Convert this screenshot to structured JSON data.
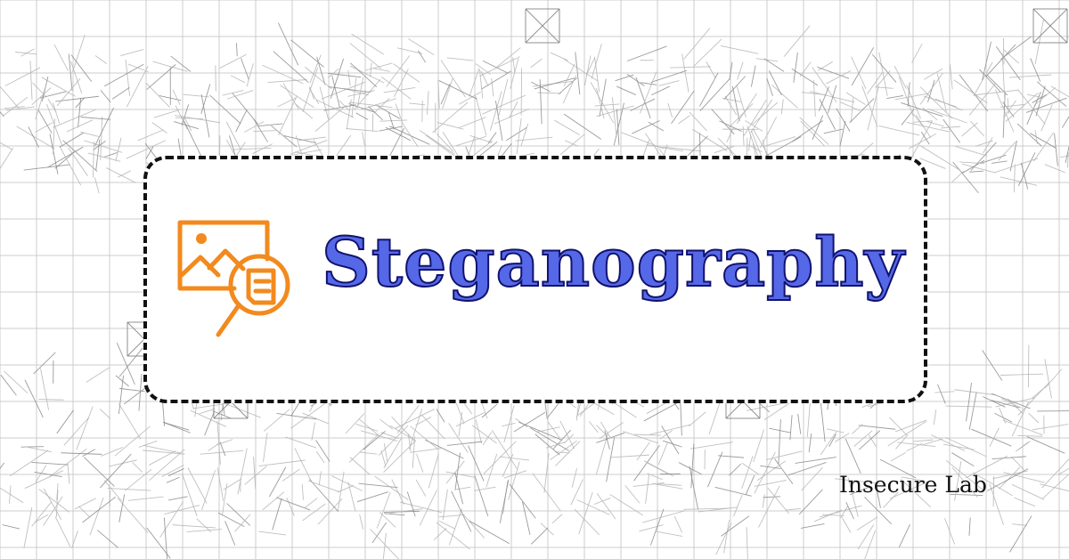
{
  "card": {
    "title": "Steganography",
    "title_color": "#5468e8",
    "title_outline_color": "#12126e",
    "icon": "image-magnifier-icon",
    "icon_color": "#f28a1e"
  },
  "footer": {
    "brand": "Insecure Lab"
  },
  "background": {
    "pattern": "wireframe-grid",
    "line_color": "#c8c8c8"
  }
}
